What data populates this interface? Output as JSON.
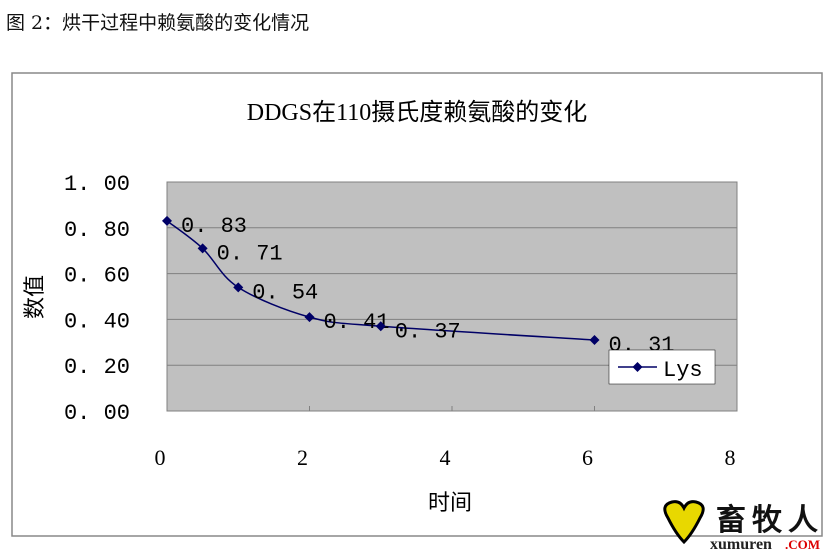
{
  "caption": "图 2：烘干过程中赖氨酸的变化情况",
  "chart_data": {
    "type": "line",
    "title": "DDGS在110摄氏度赖氨酸的变化",
    "xlabel": "时间",
    "ylabel": "数值",
    "xlim": [
      0,
      8
    ],
    "ylim": [
      0,
      1
    ],
    "xticks": [
      "0",
      "2",
      "4",
      "6",
      "8"
    ],
    "yticks": [
      "0.00",
      "0.20",
      "0.40",
      "0.60",
      "0.80",
      "1.00"
    ],
    "grid": "horizontal",
    "legend_position": "right",
    "smoothed": true,
    "series": [
      {
        "name": "Lys",
        "color": "#000066",
        "x": [
          0,
          0.5,
          1,
          2,
          3,
          6
        ],
        "values": [
          0.83,
          0.71,
          0.54,
          0.41,
          0.37,
          0.31
        ],
        "labels": [
          "0.83",
          "0.71",
          "0.54",
          "0.41",
          "0.37",
          "0.31"
        ]
      }
    ],
    "plot_background": "#c0c0c0"
  },
  "watermark": {
    "text": "畜牧人",
    "domain": "xumuren",
    "tld": ".COM"
  }
}
